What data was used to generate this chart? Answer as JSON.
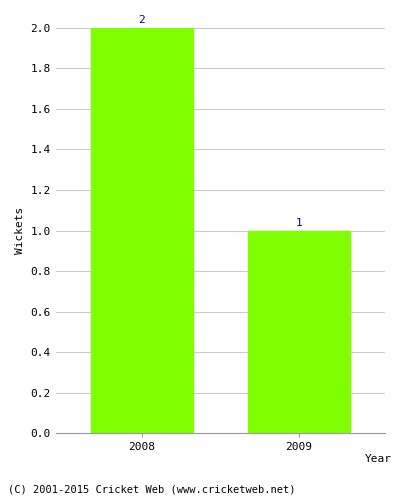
{
  "categories": [
    "2008",
    "2009"
  ],
  "values": [
    2,
    1
  ],
  "bar_color": "#7FFF00",
  "xlabel": "Year",
  "ylabel": "Wickets",
  "ylim": [
    0,
    2.0
  ],
  "yticks": [
    0.0,
    0.2,
    0.4,
    0.6,
    0.8,
    1.0,
    1.2,
    1.4,
    1.6,
    1.8,
    2.0
  ],
  "label_color": "#00008B",
  "footer": "(C) 2001-2015 Cricket Web (www.cricketweb.net)",
  "background_color": "#ffffff",
  "grid_color": "#cccccc",
  "bar_width": 0.65,
  "label_fontsize": 8,
  "axis_fontsize": 8,
  "footer_fontsize": 7.5
}
